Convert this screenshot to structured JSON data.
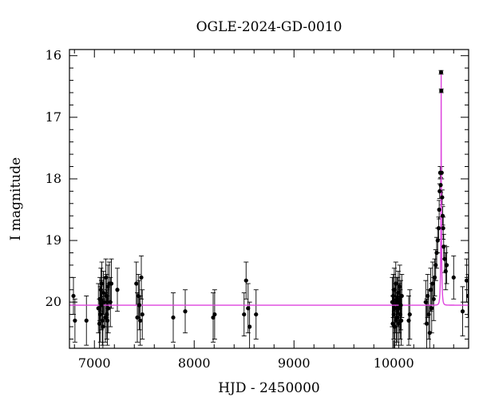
{
  "chart_data": {
    "type": "scatter",
    "title": "OGLE-2024-GD-0010",
    "xlabel": "HJD - 2450000",
    "ylabel": "I magnitude",
    "xlim": [
      6750,
      10750
    ],
    "ylim": [
      20.75,
      15.9
    ],
    "y_inverted": true,
    "grid": false,
    "legend": "none",
    "x_ticks": [
      7000,
      8000,
      9000,
      10000
    ],
    "x_tick_labels": [
      "7000",
      "8000",
      "9000",
      "10000"
    ],
    "y_ticks": [
      16,
      17,
      18,
      19,
      20
    ],
    "y_tick_labels": [
      "16",
      "17",
      "18",
      "19",
      "20"
    ],
    "colors": {
      "points": "#000000",
      "model": "#dd44dd"
    },
    "series": [
      {
        "kind": "points_with_errorbars",
        "points": [
          [
            6790,
            19.9,
            0.3
          ],
          [
            6805,
            20.3,
            0.35
          ],
          [
            6920,
            20.3,
            0.4
          ],
          [
            7040,
            20.1,
            0.4
          ],
          [
            7050,
            20.35,
            0.4
          ],
          [
            7055,
            19.95,
            0.35
          ],
          [
            7060,
            20.2,
            0.45
          ],
          [
            7065,
            19.8,
            0.35
          ],
          [
            7070,
            20.05,
            0.4
          ],
          [
            7075,
            19.7,
            0.35
          ],
          [
            7080,
            20.3,
            0.4
          ],
          [
            7085,
            20.4,
            0.45
          ],
          [
            7090,
            19.85,
            0.35
          ],
          [
            7100,
            20.0,
            0.4
          ],
          [
            7110,
            20.25,
            0.4
          ],
          [
            7115,
            19.6,
            0.3
          ],
          [
            7120,
            19.9,
            0.35
          ],
          [
            7125,
            20.2,
            0.4
          ],
          [
            7130,
            20.3,
            0.4
          ],
          [
            7135,
            19.75,
            0.35
          ],
          [
            7140,
            20.1,
            0.4
          ],
          [
            7150,
            19.7,
            0.35
          ],
          [
            7160,
            20.0,
            0.4
          ],
          [
            7170,
            19.7,
            0.4
          ],
          [
            7230,
            19.8,
            0.35
          ],
          [
            7420,
            19.7,
            0.35
          ],
          [
            7430,
            20.25,
            0.4
          ],
          [
            7440,
            19.9,
            0.35
          ],
          [
            7450,
            20.05,
            0.4
          ],
          [
            7460,
            20.3,
            0.4
          ],
          [
            7470,
            19.6,
            0.35
          ],
          [
            7480,
            20.2,
            0.4
          ],
          [
            7790,
            20.25,
            0.4
          ],
          [
            7910,
            20.15,
            0.35
          ],
          [
            8190,
            20.25,
            0.4
          ],
          [
            8205,
            20.2,
            0.4
          ],
          [
            8500,
            20.2,
            0.35
          ],
          [
            8520,
            19.65,
            0.3
          ],
          [
            8540,
            20.1,
            0.4
          ],
          [
            8555,
            20.4,
            0.4
          ],
          [
            8620,
            20.2,
            0.4
          ],
          [
            9985,
            20.0,
            0.4
          ],
          [
            9990,
            20.35,
            0.45
          ],
          [
            9995,
            19.9,
            0.35
          ],
          [
            10000,
            20.2,
            0.4
          ],
          [
            10005,
            19.8,
            0.35
          ],
          [
            10010,
            20.4,
            0.45
          ],
          [
            10015,
            20.1,
            0.4
          ],
          [
            10020,
            19.7,
            0.35
          ],
          [
            10025,
            20.3,
            0.4
          ],
          [
            10030,
            19.95,
            0.35
          ],
          [
            10035,
            20.25,
            0.4
          ],
          [
            10040,
            20.0,
            0.4
          ],
          [
            10045,
            19.85,
            0.35
          ],
          [
            10050,
            20.35,
            0.45
          ],
          [
            10055,
            20.1,
            0.4
          ],
          [
            10060,
            19.75,
            0.35
          ],
          [
            10065,
            20.2,
            0.4
          ],
          [
            10070,
            20.05,
            0.4
          ],
          [
            10075,
            20.3,
            0.4
          ],
          [
            10080,
            19.9,
            0.35
          ],
          [
            10150,
            20.3,
            0.4
          ],
          [
            10160,
            20.2,
            0.4
          ],
          [
            10320,
            20.0,
            0.35
          ],
          [
            10330,
            20.35,
            0.4
          ],
          [
            10340,
            19.9,
            0.35
          ],
          [
            10350,
            20.2,
            0.4
          ],
          [
            10360,
            20.5,
            0.45
          ],
          [
            10370,
            19.8,
            0.35
          ],
          [
            10380,
            20.1,
            0.4
          ],
          [
            10390,
            19.7,
            0.35
          ],
          [
            10400,
            19.95,
            0.35
          ],
          [
            10410,
            19.6,
            0.3
          ],
          [
            10420,
            19.4,
            0.25
          ],
          [
            10430,
            19.2,
            0.25
          ],
          [
            10440,
            19.0,
            0.2
          ],
          [
            10450,
            18.8,
            0.18
          ],
          [
            10455,
            18.5,
            0.15
          ],
          [
            10460,
            18.2,
            0.12
          ],
          [
            10465,
            17.9,
            0.1
          ],
          [
            10470,
            18.1,
            0.12
          ],
          [
            10474,
            16.27,
            0.03
          ],
          [
            10476,
            16.57,
            0.03
          ],
          [
            10480,
            17.9,
            0.1
          ],
          [
            10485,
            18.3,
            0.12
          ],
          [
            10490,
            18.6,
            0.15
          ],
          [
            10495,
            18.8,
            0.18
          ],
          [
            10500,
            19.1,
            0.2
          ],
          [
            10510,
            19.3,
            0.22
          ],
          [
            10520,
            19.5,
            0.3
          ],
          [
            10530,
            19.4,
            0.3
          ],
          [
            10600,
            19.6,
            0.35
          ],
          [
            10690,
            20.15,
            0.4
          ],
          [
            10730,
            19.65,
            0.35
          ],
          [
            10745,
            19.9,
            0.35
          ]
        ]
      },
      {
        "kind": "model_curve",
        "baseline": 20.05,
        "peak_time": 10475,
        "peak_mag": 16.25,
        "tE": 10
      }
    ]
  }
}
